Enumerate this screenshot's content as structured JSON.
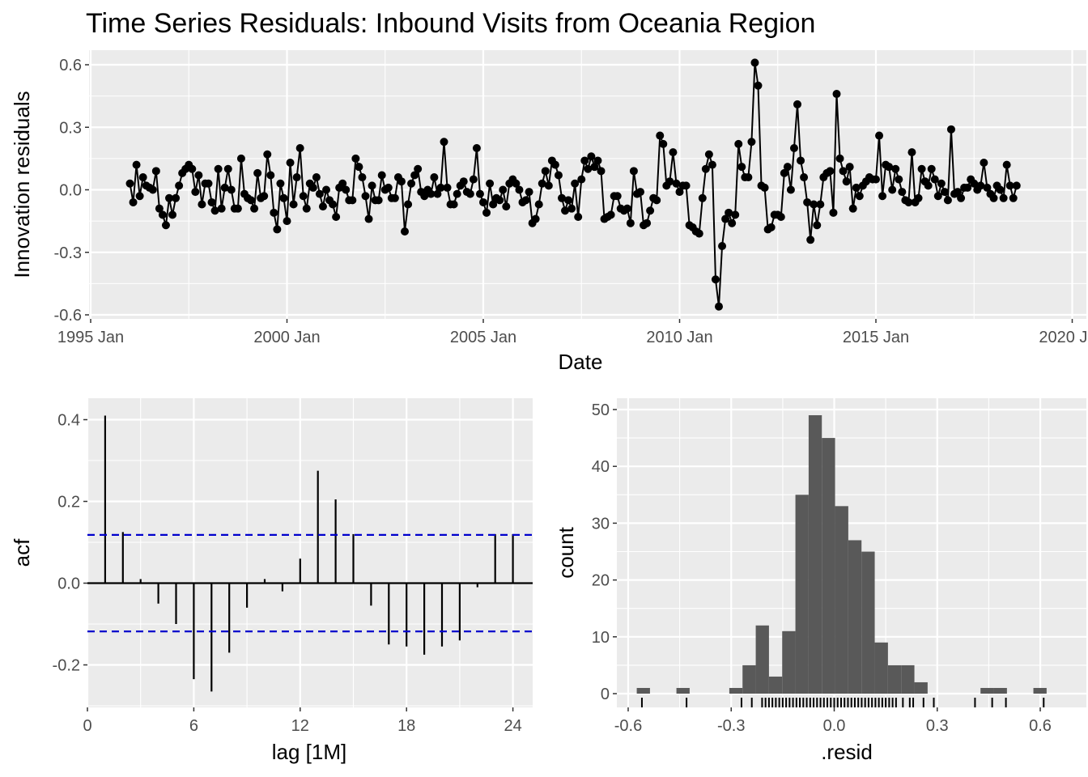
{
  "page_title": "Time Series Residuals: Inbound Visits from Oceania Region",
  "colors": {
    "panel": "#ebebeb",
    "grid_major": "#ffffff",
    "ink": "#000000",
    "tick_text": "#4d4d4d",
    "ci_line": "#0000cc",
    "bar_fill": "#595959"
  },
  "chart_data": [
    {
      "type": "line",
      "markers": "points",
      "xlabel": "Date",
      "ylabel": "Innovation residuals",
      "x_ticks": [
        "1995 Jan",
        "2000 Jan",
        "2005 Jan",
        "2010 Jan",
        "2015 Jan",
        "2020 Jan"
      ],
      "y_ticks": [
        "-0.6",
        "-0.3",
        "0.0",
        "0.3",
        "0.6"
      ],
      "xlim": [
        "1995 Jan",
        "2020 Jan"
      ],
      "ylim": [
        -0.6,
        0.63
      ],
      "grid": true,
      "x_start": "1996 Jan",
      "frequency": "monthly",
      "values": [
        0.03,
        -0.06,
        0.12,
        -0.03,
        0.06,
        0.02,
        0.01,
        0.0,
        0.09,
        -0.09,
        -0.12,
        -0.17,
        -0.04,
        -0.12,
        -0.04,
        0.02,
        0.08,
        0.1,
        0.12,
        0.1,
        -0.01,
        0.07,
        -0.07,
        0.03,
        0.03,
        -0.06,
        -0.1,
        0.1,
        -0.09,
        0.01,
        0.1,
        0.0,
        -0.09,
        -0.09,
        0.15,
        -0.02,
        -0.04,
        -0.05,
        -0.09,
        0.08,
        -0.04,
        -0.03,
        0.17,
        0.07,
        -0.11,
        -0.19,
        0.03,
        -0.04,
        -0.15,
        0.13,
        -0.07,
        0.06,
        0.2,
        -0.03,
        -0.09,
        0.03,
        0.01,
        0.06,
        -0.02,
        -0.08,
        0.0,
        -0.05,
        -0.07,
        -0.13,
        0.01,
        0.03,
        0.0,
        -0.05,
        -0.05,
        0.15,
        0.11,
        0.06,
        -0.03,
        -0.14,
        0.02,
        -0.05,
        -0.05,
        0.07,
        0.0,
        0.01,
        -0.04,
        -0.04,
        0.06,
        0.04,
        -0.2,
        -0.07,
        0.03,
        0.07,
        0.1,
        -0.01,
        -0.03,
        0.0,
        -0.02,
        0.06,
        -0.02,
        0.01,
        0.23,
        0.01,
        -0.07,
        -0.07,
        -0.02,
        0.02,
        0.04,
        -0.01,
        -0.02,
        0.05,
        0.2,
        -0.02,
        -0.06,
        -0.11,
        0.03,
        -0.07,
        -0.04,
        -0.05,
        0.0,
        -0.08,
        0.03,
        0.05,
        0.03,
        0.0,
        -0.06,
        -0.05,
        -0.01,
        -0.16,
        -0.14,
        -0.07,
        0.03,
        0.09,
        0.02,
        0.14,
        0.12,
        0.07,
        -0.04,
        -0.1,
        -0.05,
        -0.09,
        0.03,
        -0.13,
        0.05,
        0.14,
        0.1,
        0.16,
        0.11,
        0.14,
        0.09,
        -0.14,
        -0.13,
        -0.12,
        -0.03,
        -0.03,
        -0.09,
        -0.1,
        -0.09,
        -0.16,
        0.09,
        -0.02,
        -0.01,
        -0.17,
        -0.16,
        -0.1,
        -0.04,
        -0.05,
        0.26,
        0.22,
        0.02,
        0.04,
        0.18,
        0.03,
        -0.01,
        0.02,
        0.02,
        -0.17,
        -0.18,
        -0.2,
        -0.21,
        -0.04,
        0.1,
        0.17,
        0.12,
        -0.43,
        -0.56,
        -0.27,
        -0.14,
        -0.11,
        -0.16,
        -0.12,
        0.22,
        0.11,
        0.06,
        0.06,
        0.23,
        0.61,
        0.5,
        0.02,
        0.01,
        -0.19,
        -0.18,
        -0.12,
        -0.12,
        -0.13,
        0.08,
        0.11,
        0.0,
        0.2,
        0.41,
        0.14,
        0.06,
        -0.06,
        -0.24,
        -0.07,
        -0.17,
        -0.07,
        0.06,
        0.08,
        0.09,
        -0.11,
        0.46,
        0.15,
        0.09,
        0.04,
        0.11,
        -0.09,
        0.01,
        -0.03,
        0.02,
        0.04,
        0.06,
        0.05,
        0.05,
        0.26,
        -0.03,
        0.12,
        0.11,
        0.0,
        0.1,
        0.05,
        -0.01,
        -0.05,
        -0.06,
        0.18,
        -0.06,
        -0.04,
        0.1,
        0.04,
        0.02,
        0.1,
        0.05,
        -0.03,
        0.03,
        -0.01,
        -0.05,
        0.29,
        -0.02,
        -0.01,
        -0.04,
        0.01,
        0.01,
        0.05,
        0.03,
        0.0,
        0.02,
        0.13,
        0.01,
        -0.02,
        -0.04,
        0.02,
        0.0,
        -0.04,
        0.12,
        0.02,
        -0.04,
        0.02
      ]
    },
    {
      "type": "bar",
      "style": "acf-stem",
      "xlabel": "lag [1M]",
      "ylabel": "acf",
      "x_ticks": [
        "0",
        "6",
        "12",
        "18",
        "24"
      ],
      "y_ticks": [
        "-0.2",
        "0.0",
        "0.2",
        "0.4"
      ],
      "xlim": [
        0,
        25
      ],
      "ylim": [
        -0.3,
        0.45
      ],
      "grid": true,
      "confidence_bound": 0.118,
      "lags": [
        1,
        2,
        3,
        4,
        5,
        6,
        7,
        8,
        9,
        10,
        11,
        12,
        13,
        14,
        15,
        16,
        17,
        18,
        19,
        20,
        21,
        22,
        23,
        24
      ],
      "values": [
        0.41,
        0.125,
        0.01,
        -0.05,
        -0.1,
        -0.235,
        -0.265,
        -0.17,
        -0.06,
        0.01,
        -0.02,
        0.06,
        0.275,
        0.205,
        0.12,
        -0.055,
        -0.15,
        -0.155,
        -0.175,
        -0.155,
        -0.14,
        -0.01,
        0.12,
        0.12
      ]
    },
    {
      "type": "bar",
      "style": "histogram-with-rug",
      "xlabel": ".resid",
      "ylabel": "count",
      "x_ticks": [
        "-0.6",
        "-0.3",
        "0.0",
        "0.3",
        "0.6"
      ],
      "y_ticks": [
        "0",
        "10",
        "20",
        "30",
        "40",
        "50"
      ],
      "xlim": [
        -0.62,
        0.66
      ],
      "ylim": [
        0,
        51
      ],
      "grid": true,
      "bin_width": 0.0385,
      "bin_start": -0.575,
      "counts": [
        1,
        0,
        0,
        1,
        0,
        0,
        0,
        1,
        5,
        12,
        3,
        11,
        35,
        49,
        45,
        33,
        27,
        25,
        9,
        5,
        5,
        2,
        0,
        0,
        0,
        0,
        1,
        1,
        0,
        0,
        1
      ],
      "rug": [
        -0.56,
        -0.43,
        -0.27,
        -0.24,
        -0.21,
        -0.2,
        -0.19,
        -0.18,
        -0.17,
        -0.16,
        -0.15,
        -0.14,
        -0.13,
        -0.12,
        -0.11,
        -0.1,
        -0.09,
        -0.08,
        -0.07,
        -0.06,
        -0.05,
        -0.04,
        -0.03,
        -0.02,
        -0.01,
        0.0,
        0.01,
        0.02,
        0.03,
        0.04,
        0.05,
        0.06,
        0.07,
        0.08,
        0.09,
        0.1,
        0.11,
        0.12,
        0.13,
        0.14,
        0.15,
        0.16,
        0.17,
        0.18,
        0.2,
        0.22,
        0.23,
        0.26,
        0.29,
        0.41,
        0.46,
        0.5,
        0.61
      ]
    }
  ]
}
